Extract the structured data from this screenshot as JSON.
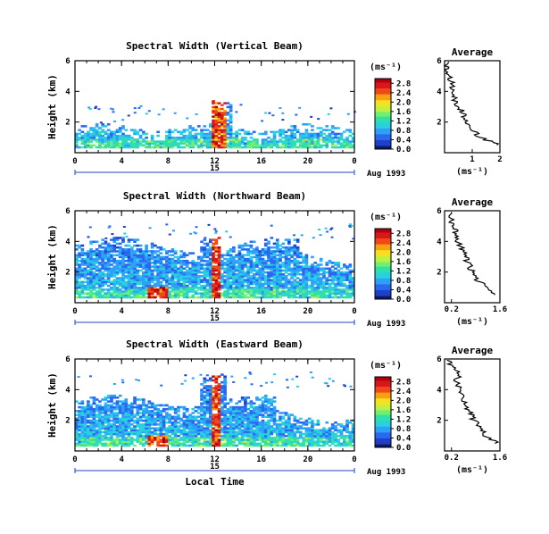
{
  "chart_data": [
    {
      "type": "heatmap",
      "title": "Spectral Width (Vertical Beam)",
      "ylabel": "Height (km)",
      "xlabel": "",
      "xlim": [
        0,
        24
      ],
      "ylim": [
        0,
        6
      ],
      "x_ticks": [
        "0",
        "4",
        "8",
        "12",
        "16",
        "20",
        "0"
      ],
      "y_ticks": [
        "2",
        "4",
        "6"
      ],
      "date_label": "15",
      "month_label": "Aug 1993",
      "colorbar_unit": "(ms⁻¹)",
      "colorbar_ticks": [
        "0.0",
        "0.4",
        "0.8",
        "1.2",
        "1.6",
        "2.0",
        "2.4",
        "2.8"
      ],
      "average": {
        "title": "Average",
        "xlabel": "(ms⁻¹)",
        "x_ticks": [
          "1",
          "2"
        ],
        "xlim": [
          0,
          2
        ],
        "height": [
          0.5,
          1.0,
          1.5,
          2.0,
          2.5,
          3.0,
          3.5,
          4.0,
          4.5,
          5.0,
          5.5,
          6.0
        ],
        "width": [
          1.95,
          1.3,
          0.95,
          0.75,
          0.7,
          0.5,
          0.35,
          0.3,
          0.25,
          0.15,
          0.1,
          0.05
        ]
      }
    },
    {
      "type": "heatmap",
      "title": "Spectral Width (Northward Beam)",
      "ylabel": "Height (km)",
      "xlabel": "",
      "xlim": [
        0,
        24
      ],
      "ylim": [
        0,
        6
      ],
      "x_ticks": [
        "0",
        "4",
        "8",
        "12",
        "16",
        "20",
        "0"
      ],
      "y_ticks": [
        "2",
        "4",
        "6"
      ],
      "date_label": "15",
      "month_label": "Aug 1993",
      "colorbar_unit": "(ms⁻¹)",
      "colorbar_ticks": [
        "0.0",
        "0.4",
        "0.8",
        "1.2",
        "1.6",
        "2.0",
        "2.4",
        "2.8"
      ],
      "average": {
        "title": "Average",
        "xlabel": "(ms⁻¹)",
        "x_ticks": [
          "0.2",
          "1.6"
        ],
        "xlim": [
          0,
          1.6
        ],
        "height": [
          0.5,
          1.0,
          1.5,
          2.0,
          2.5,
          3.0,
          3.5,
          4.0,
          4.5,
          5.0,
          5.5,
          6.0
        ],
        "width": [
          1.5,
          1.2,
          0.95,
          0.8,
          0.7,
          0.6,
          0.5,
          0.4,
          0.35,
          0.3,
          0.15,
          0.3
        ]
      }
    },
    {
      "type": "heatmap",
      "title": "Spectral Width (Eastward Beam)",
      "ylabel": "Height (km)",
      "xlabel": "Local Time",
      "xlim": [
        0,
        24
      ],
      "ylim": [
        0,
        6
      ],
      "x_ticks": [
        "0",
        "4",
        "8",
        "12",
        "16",
        "20",
        "0"
      ],
      "y_ticks": [
        "2",
        "4",
        "6"
      ],
      "date_label": "15",
      "month_label": "Aug 1993",
      "colorbar_unit": "(ms⁻¹)",
      "colorbar_ticks": [
        "0.0",
        "0.4",
        "0.8",
        "1.2",
        "1.6",
        "2.0",
        "2.4",
        "2.8"
      ],
      "average": {
        "title": "Average",
        "xlabel": "(ms⁻¹)",
        "x_ticks": [
          "0.2",
          "1.6"
        ],
        "xlim": [
          0,
          1.6
        ],
        "height": [
          0.5,
          1.0,
          1.5,
          2.0,
          2.5,
          3.0,
          3.5,
          4.0,
          4.5,
          5.0,
          5.5,
          6.0
        ],
        "width": [
          1.5,
          1.2,
          1.0,
          0.85,
          0.75,
          0.6,
          0.5,
          0.45,
          0.35,
          0.4,
          0.2,
          0.1
        ]
      }
    }
  ]
}
